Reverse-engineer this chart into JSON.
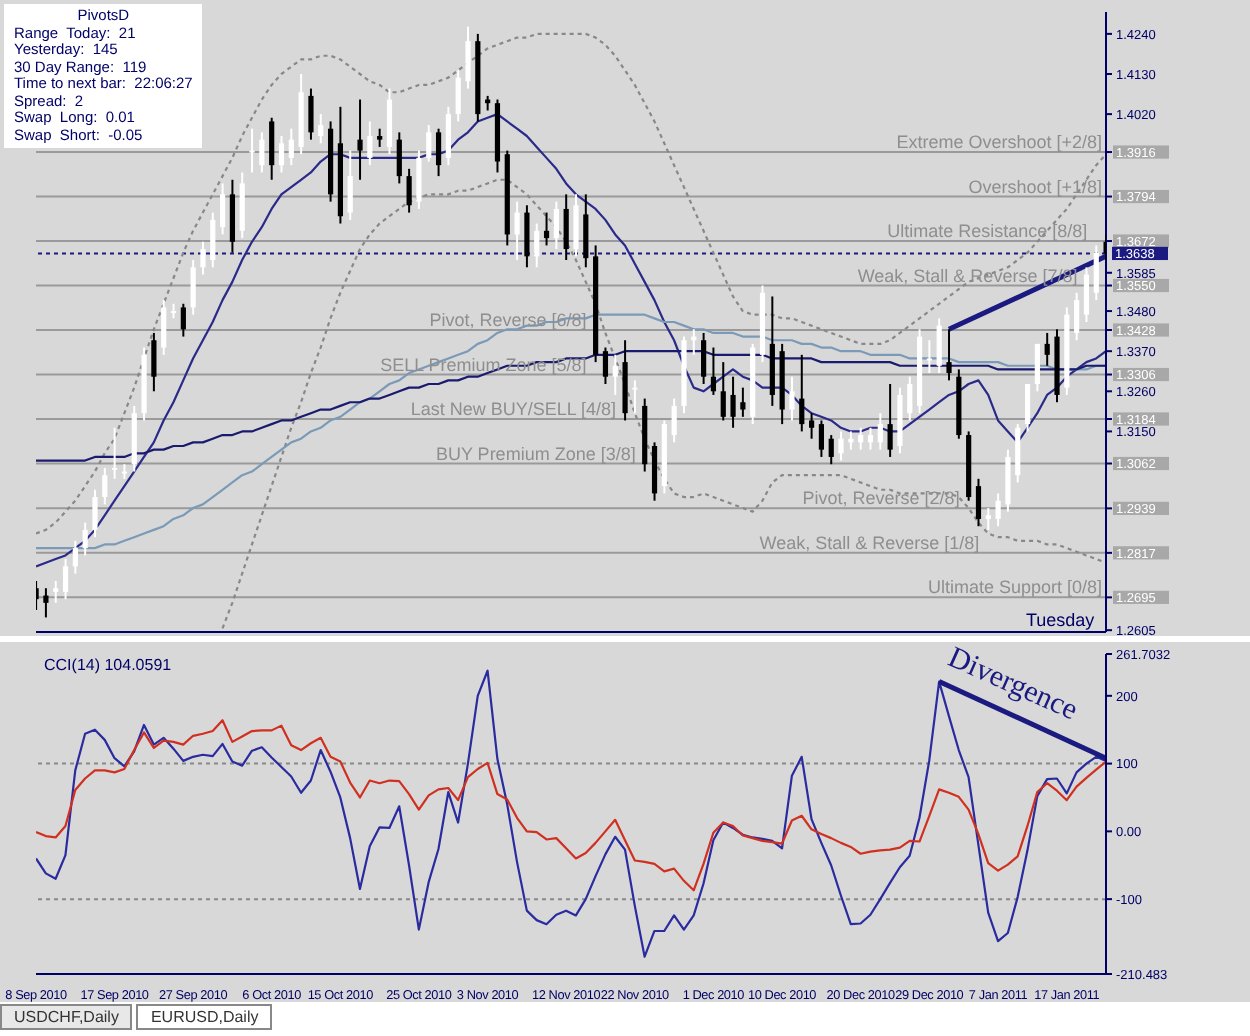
{
  "chart_data": [
    {
      "type": "candlestick",
      "tick_labels": "y",
      "grid": false,
      "categories": [
        null,
        null,
        null,
        null,
        null,
        null,
        null,
        null,
        null,
        null,
        null,
        null,
        null,
        null,
        null,
        null,
        null,
        null,
        null,
        null,
        null,
        null,
        null,
        null,
        null,
        null,
        null,
        null,
        null,
        null,
        null,
        null,
        null,
        null,
        null,
        null,
        null,
        null,
        null,
        null,
        null,
        null,
        null,
        null,
        null,
        null,
        null,
        null,
        null,
        null,
        null,
        null,
        null,
        null,
        null,
        null,
        null,
        null,
        null,
        null,
        null,
        null,
        null,
        null,
        null,
        null,
        null,
        null,
        null,
        null,
        null,
        null,
        null,
        null,
        null,
        null,
        null,
        null,
        null,
        null,
        null,
        null,
        null,
        null,
        null,
        null,
        null,
        null,
        null,
        null,
        null,
        null,
        null,
        null,
        null,
        null,
        null,
        null,
        null,
        null,
        null,
        null,
        null,
        null,
        null,
        null,
        null,
        null,
        null,
        null
      ],
      "ohlc": [
        [
          1.272,
          1.274,
          1.266,
          1.269
        ],
        [
          1.27,
          1.272,
          1.264,
          1.268
        ],
        [
          1.271,
          1.274,
          1.268,
          1.272
        ],
        [
          1.271,
          1.28,
          1.269,
          1.278
        ],
        [
          1.278,
          1.285,
          1.276,
          1.283
        ],
        [
          1.283,
          1.29,
          1.281,
          1.288
        ],
        [
          1.288,
          1.299,
          1.286,
          1.297
        ],
        [
          1.297,
          1.305,
          1.295,
          1.303
        ],
        [
          1.305,
          1.316,
          1.302,
          1.305
        ],
        [
          1.304,
          1.306,
          1.302,
          1.304
        ],
        [
          1.306,
          1.322,
          1.304,
          1.32
        ],
        [
          1.32,
          1.338,
          1.318,
          1.336
        ],
        [
          1.34,
          1.342,
          1.326,
          1.33
        ],
        [
          1.338,
          1.351,
          1.336,
          1.349
        ],
        [
          1.348,
          1.35,
          1.346,
          1.348
        ],
        [
          1.349,
          1.35,
          1.341,
          1.343
        ],
        [
          1.349,
          1.362,
          1.347,
          1.36
        ],
        [
          1.36,
          1.367,
          1.358,
          1.365
        ],
        [
          1.362,
          1.375,
          1.36,
          1.373
        ],
        [
          1.371,
          1.383,
          1.369,
          1.38
        ],
        [
          1.38,
          1.384,
          1.364,
          1.367
        ],
        [
          1.37,
          1.386,
          1.368,
          1.383
        ],
        [
          1.392,
          1.398,
          1.386,
          1.392
        ],
        [
          1.388,
          1.397,
          1.386,
          1.395
        ],
        [
          1.4,
          1.401,
          1.384,
          1.388
        ],
        [
          1.388,
          1.396,
          1.386,
          1.394
        ],
        [
          1.39,
          1.398,
          1.388,
          1.395
        ],
        [
          1.393,
          1.413,
          1.391,
          1.408
        ],
        [
          1.407,
          1.409,
          1.395,
          1.397
        ],
        [
          1.396,
          1.402,
          1.394,
          1.399
        ],
        [
          1.398,
          1.4,
          1.378,
          1.38
        ],
        [
          1.394,
          1.404,
          1.372,
          1.374
        ],
        [
          1.375,
          1.392,
          1.373,
          1.385
        ],
        [
          1.395,
          1.406,
          1.384,
          1.392
        ],
        [
          1.39,
          1.4,
          1.388,
          1.396
        ],
        [
          1.396,
          1.398,
          1.393,
          1.395
        ],
        [
          1.393,
          1.409,
          1.391,
          1.406
        ],
        [
          1.395,
          1.397,
          1.383,
          1.385
        ],
        [
          1.385,
          1.387,
          1.375,
          1.377
        ],
        [
          1.378,
          1.392,
          1.376,
          1.39
        ],
        [
          1.39,
          1.399,
          1.389,
          1.397
        ],
        [
          1.397,
          1.398,
          1.385,
          1.388
        ],
        [
          1.39,
          1.404,
          1.388,
          1.402
        ],
        [
          1.402,
          1.414,
          1.4,
          1.412
        ],
        [
          1.411,
          1.426,
          1.409,
          1.422
        ],
        [
          1.422,
          1.424,
          1.4,
          1.402
        ],
        [
          1.406,
          1.407,
          1.403,
          1.405
        ],
        [
          1.405,
          1.406,
          1.386,
          1.389
        ],
        [
          1.391,
          1.392,
          1.366,
          1.369
        ],
        [
          1.369,
          1.378,
          1.362,
          1.375
        ],
        [
          1.375,
          1.377,
          1.36,
          1.363
        ],
        [
          1.363,
          1.372,
          1.36,
          1.37
        ],
        [
          1.37,
          1.375,
          1.366,
          1.368
        ],
        [
          1.368,
          1.378,
          1.365,
          1.376
        ],
        [
          1.376,
          1.38,
          1.362,
          1.365
        ],
        [
          1.365,
          1.38,
          1.363,
          1.377
        ],
        [
          1.3745,
          1.38,
          1.36,
          1.3625
        ],
        [
          1.363,
          1.366,
          1.334,
          1.336
        ],
        [
          1.337,
          1.338,
          1.328,
          1.33
        ],
        [
          1.33,
          1.336,
          1.325,
          1.333
        ],
        [
          1.334,
          1.34,
          1.318,
          1.32
        ],
        [
          1.327,
          1.329,
          1.32,
          1.327
        ],
        [
          1.322,
          1.324,
          1.304,
          1.306
        ],
        [
          1.311,
          1.312,
          1.296,
          1.298
        ],
        [
          1.3,
          1.318,
          1.298,
          1.317
        ],
        [
          1.314,
          1.324,
          1.312,
          1.322
        ],
        [
          1.322,
          1.341,
          1.32,
          1.34
        ],
        [
          1.34,
          1.343,
          1.336,
          1.341
        ],
        [
          1.34,
          1.342,
          1.328,
          1.33
        ],
        [
          1.33,
          1.338,
          1.325,
          1.326
        ],
        [
          1.326,
          1.334,
          1.318,
          1.319
        ],
        [
          1.325,
          1.33,
          1.316,
          1.319
        ],
        [
          1.323,
          1.327,
          1.319,
          1.321
        ],
        [
          1.319,
          1.339,
          1.317,
          1.338
        ],
        [
          1.336,
          1.355,
          1.334,
          1.353
        ],
        [
          1.339,
          1.352,
          1.322,
          1.325
        ],
        [
          1.337,
          1.339,
          1.317,
          1.321
        ],
        [
          1.321,
          1.33,
          1.318,
          1.326
        ],
        [
          1.324,
          1.336,
          1.315,
          1.317
        ],
        [
          1.318,
          1.32,
          1.313,
          1.316
        ],
        [
          1.317,
          1.318,
          1.308,
          1.31
        ],
        [
          1.313,
          1.314,
          1.306,
          1.308
        ],
        [
          1.309,
          1.315,
          1.307,
          1.313
        ],
        [
          1.312,
          1.315,
          1.31,
          1.313
        ],
        [
          1.312,
          1.316,
          1.31,
          1.314
        ],
        [
          1.312,
          1.316,
          1.31,
          1.314
        ],
        [
          1.312,
          1.32,
          1.31,
          1.317
        ],
        [
          1.317,
          1.328,
          1.308,
          1.31
        ],
        [
          1.311,
          1.327,
          1.309,
          1.325
        ],
        [
          1.32,
          1.33,
          1.318,
          1.328
        ],
        [
          1.322,
          1.343,
          1.32,
          1.341
        ],
        [
          1.335,
          1.34,
          1.331,
          1.335
        ],
        [
          1.333,
          1.346,
          1.331,
          1.344
        ],
        [
          1.334,
          1.343,
          1.329,
          1.331
        ],
        [
          1.33,
          1.332,
          1.313,
          1.314
        ],
        [
          1.314,
          1.315,
          1.296,
          1.297
        ],
        [
          1.3,
          1.302,
          1.289,
          1.291
        ],
        [
          1.291,
          1.294,
          1.288,
          1.292
        ],
        [
          1.291,
          1.298,
          1.289,
          1.296
        ],
        [
          1.295,
          1.31,
          1.293,
          1.308
        ],
        [
          1.303,
          1.317,
          1.301,
          1.316
        ],
        [
          1.317,
          1.328,
          1.315,
          1.328
        ],
        [
          1.328,
          1.339,
          1.326,
          1.339
        ],
        [
          1.339,
          1.342,
          1.333,
          1.336
        ],
        [
          1.341,
          1.343,
          1.323,
          1.325
        ],
        [
          1.327,
          1.349,
          1.325,
          1.347
        ],
        [
          1.342,
          1.353,
          1.34,
          1.351
        ],
        [
          1.347,
          1.36,
          1.345,
          1.358
        ],
        [
          1.353,
          1.366,
          1.351,
          1.364
        ],
        [
          1.367,
          1.369,
          1.362,
          1.3638
        ]
      ],
      "series": [
        {
          "type": "line",
          "color": "#888888",
          "line_style": "dotted",
          "values": [
            1.287,
            1.288,
            1.29,
            1.293,
            1.296,
            1.3,
            1.304,
            1.309,
            1.313,
            1.32,
            1.327,
            1.335,
            1.343,
            1.35,
            1.357,
            1.364,
            1.37,
            1.375,
            1.38,
            1.385,
            1.39,
            1.396,
            1.401,
            1.406,
            1.41,
            1.413,
            1.415,
            1.417,
            1.417,
            1.418,
            1.418,
            1.417,
            1.415,
            1.413,
            1.411,
            1.41,
            1.408,
            1.408,
            1.409,
            1.41,
            1.41,
            1.411,
            1.412,
            1.414,
            1.416,
            1.418,
            1.42,
            1.421,
            1.422,
            1.423,
            1.423,
            1.424,
            1.424,
            1.424,
            1.424,
            1.424,
            1.424,
            1.423,
            1.421,
            1.418,
            1.414,
            1.41,
            1.405,
            1.4,
            1.394,
            1.388,
            1.382,
            1.376,
            1.37,
            1.364,
            1.358,
            1.352,
            1.348,
            1.347,
            1.347,
            1.347,
            1.346,
            1.346,
            1.345,
            1.344,
            1.343,
            1.342,
            1.341,
            1.34,
            1.339,
            1.339,
            1.339,
            1.34,
            1.342,
            1.344,
            1.346,
            1.348,
            1.35,
            1.352,
            1.354,
            1.356,
            1.357,
            1.358,
            1.359,
            1.36,
            1.362,
            1.364,
            1.367,
            1.37,
            1.373,
            1.376,
            1.38,
            1.384,
            1.388,
            1.391
          ]
        },
        {
          "type": "line",
          "color": "#888888",
          "line_style": "dotted",
          "values": [
            null,
            null,
            null,
            null,
            null,
            null,
            null,
            null,
            null,
            null,
            null,
            null,
            null,
            null,
            null,
            null,
            null,
            null,
            null,
            1.261,
            1.268,
            1.276,
            1.284,
            1.292,
            1.3,
            1.308,
            1.316,
            1.323,
            1.331,
            1.338,
            1.346,
            1.353,
            1.359,
            1.365,
            1.369,
            1.372,
            1.374,
            1.376,
            1.378,
            1.379,
            1.38,
            1.38,
            1.38,
            1.381,
            1.381,
            1.382,
            1.383,
            1.384,
            1.384,
            1.382,
            1.38,
            1.377,
            1.374,
            1.371,
            1.367,
            1.362,
            1.356,
            1.35,
            1.342,
            1.335,
            1.328,
            1.32,
            1.313,
            1.307,
            1.302,
            1.298,
            1.297,
            1.297,
            1.298,
            1.297,
            1.296,
            1.295,
            1.294,
            1.293,
            1.296,
            1.301,
            1.303,
            1.303,
            1.303,
            1.303,
            1.303,
            1.303,
            1.303,
            1.302,
            1.301,
            1.3,
            1.299,
            1.299,
            1.298,
            1.298,
            1.298,
            1.298,
            1.298,
            1.298,
            1.297,
            1.294,
            1.29,
            1.287,
            1.286,
            1.286,
            1.285,
            1.285,
            1.285,
            1.284,
            1.284,
            1.283,
            1.282,
            1.281,
            1.28,
            1.279
          ]
        },
        {
          "type": "line",
          "color": "#2a2a8a",
          "line_style": "solid",
          "values": [
            1.278,
            1.279,
            1.28,
            1.281,
            1.283,
            1.285,
            1.288,
            1.292,
            1.296,
            1.3,
            1.304,
            1.308,
            1.312,
            1.318,
            1.323,
            1.329,
            1.335,
            1.34,
            1.345,
            1.351,
            1.356,
            1.362,
            1.367,
            1.371,
            1.376,
            1.38,
            1.382,
            1.384,
            1.386,
            1.389,
            1.391,
            1.391,
            1.39,
            1.39,
            1.39,
            1.39,
            1.39,
            1.39,
            1.39,
            1.39,
            1.391,
            1.391,
            1.392,
            1.395,
            1.397,
            1.4,
            1.401,
            1.402,
            1.4,
            1.398,
            1.396,
            1.393,
            1.39,
            1.387,
            1.383,
            1.38,
            1.378,
            1.376,
            1.373,
            1.369,
            1.366,
            1.361,
            1.356,
            1.351,
            1.345,
            1.34,
            1.333,
            1.327,
            1.326,
            1.328,
            1.33,
            1.332,
            1.33,
            1.329,
            1.327,
            1.327,
            1.327,
            1.325,
            1.322,
            1.32,
            1.319,
            1.318,
            1.316,
            1.315,
            1.315,
            1.316,
            1.316,
            1.315,
            1.315,
            1.317,
            1.319,
            1.321,
            1.323,
            1.325,
            1.326,
            1.328,
            1.329,
            1.325,
            1.318,
            1.315,
            1.312,
            1.316,
            1.32,
            1.325,
            1.327,
            1.33,
            1.332,
            1.334,
            1.335,
            1.337
          ]
        },
        {
          "type": "line",
          "color": "#7a9ab8",
          "line_style": "solid",
          "values": [
            1.283,
            1.283,
            1.283,
            1.283,
            1.283,
            1.283,
            1.283,
            1.284,
            1.284,
            1.285,
            1.286,
            1.287,
            1.288,
            1.289,
            1.291,
            1.292,
            1.294,
            1.295,
            1.297,
            1.299,
            1.301,
            1.303,
            1.304,
            1.306,
            1.308,
            1.31,
            1.312,
            1.313,
            1.315,
            1.316,
            1.318,
            1.319,
            1.321,
            1.323,
            1.324,
            1.326,
            1.328,
            1.329,
            1.331,
            1.332,
            1.333,
            1.334,
            1.335,
            1.336,
            1.337,
            1.339,
            1.34,
            1.342,
            1.343,
            1.343,
            1.344,
            1.344,
            1.345,
            1.345,
            1.346,
            1.346,
            1.346,
            1.347,
            1.347,
            1.347,
            1.347,
            1.347,
            1.347,
            1.346,
            1.345,
            1.345,
            1.344,
            1.343,
            1.343,
            1.342,
            1.342,
            1.342,
            1.341,
            1.341,
            1.341,
            1.34,
            1.34,
            1.34,
            1.339,
            1.339,
            1.338,
            1.338,
            1.337,
            1.337,
            1.337,
            1.336,
            1.336,
            1.336,
            1.336,
            1.335,
            1.335,
            1.335,
            1.335,
            1.335,
            1.334,
            1.334,
            1.334,
            1.334,
            1.334,
            1.333,
            1.333,
            1.333,
            1.333,
            1.333,
            1.332,
            1.332,
            1.332,
            1.332,
            1.333,
            1.333
          ]
        },
        {
          "type": "line",
          "color": "#1a1a6e",
          "line_style": "solid",
          "values": [
            1.307,
            1.307,
            1.307,
            1.307,
            1.307,
            1.307,
            1.308,
            1.308,
            1.308,
            1.308,
            1.309,
            1.309,
            1.31,
            1.31,
            1.311,
            1.311,
            1.312,
            1.312,
            1.313,
            1.314,
            1.314,
            1.315,
            1.315,
            1.316,
            1.317,
            1.318,
            1.318,
            1.319,
            1.32,
            1.321,
            1.321,
            1.322,
            1.323,
            1.323,
            1.324,
            1.324,
            1.325,
            1.326,
            1.327,
            1.327,
            1.328,
            1.328,
            1.329,
            1.329,
            1.33,
            1.33,
            1.331,
            1.332,
            1.333,
            1.333,
            1.333,
            1.334,
            1.334,
            1.334,
            1.335,
            1.335,
            1.335,
            1.336,
            1.336,
            1.336,
            1.337,
            1.337,
            1.337,
            1.337,
            1.337,
            1.337,
            1.337,
            1.337,
            1.337,
            1.336,
            1.336,
            1.336,
            1.336,
            1.336,
            1.336,
            1.335,
            1.335,
            1.335,
            1.335,
            1.335,
            1.334,
            1.334,
            1.334,
            1.334,
            1.334,
            1.334,
            1.334,
            1.334,
            1.333,
            1.333,
            1.333,
            1.333,
            1.333,
            1.333,
            1.333,
            1.333,
            1.333,
            1.333,
            1.332,
            1.332,
            1.332,
            1.332,
            1.332,
            1.332,
            1.332,
            1.332,
            1.332,
            1.333,
            1.333,
            1.333
          ]
        },
        {
          "type": "line",
          "color": "#1a1a80",
          "line_style": "solid",
          "values": [
            null,
            null,
            null,
            null,
            null,
            null,
            null,
            null,
            null,
            null,
            null,
            null,
            null,
            null,
            null,
            null,
            null,
            null,
            null,
            null,
            null,
            null,
            null,
            null,
            null,
            null,
            null,
            null,
            null,
            null,
            null,
            null,
            null,
            null,
            null,
            null,
            null,
            null,
            null,
            null,
            null,
            null,
            null,
            null,
            null,
            null,
            null,
            null,
            null,
            null,
            null,
            null,
            null,
            null,
            null,
            null,
            null,
            null,
            null,
            null,
            null,
            null,
            null,
            null,
            null,
            null,
            null,
            null,
            null,
            null,
            null,
            null,
            null,
            null,
            null,
            null,
            null,
            null,
            null,
            null,
            null,
            null,
            null,
            null,
            null,
            null,
            null,
            null,
            null,
            null,
            null,
            null,
            null,
            1.343,
            null,
            null,
            null,
            null,
            null,
            null,
            null,
            null,
            null,
            null,
            null,
            null,
            null,
            null,
            null,
            1.363
          ]
        }
      ],
      "ylim": [
        1.26,
        1.43
      ],
      "yticks": [
        {
          "value": 1.424,
          "label": "1.4240"
        },
        {
          "value": 1.413,
          "label": "1.4130"
        },
        {
          "value": 1.402,
          "label": "1.4020"
        },
        {
          "value": 1.3585,
          "label": "1.3585"
        },
        {
          "value": 1.348,
          "label": "1.3480"
        },
        {
          "value": 1.337,
          "label": "1.3370"
        },
        {
          "value": 1.326,
          "label": "1.3260"
        },
        {
          "value": 1.315,
          "label": "1.3150"
        },
        {
          "value": 1.2605,
          "label": "1.2605"
        },
        {
          "value": 1.3916,
          "label": "1.3916"
        },
        {
          "value": 1.3794,
          "label": "1.3794"
        },
        {
          "value": 1.3672,
          "label": "1.3672"
        },
        {
          "value": 1.355,
          "label": "1.3550"
        },
        {
          "value": 1.3428,
          "label": "1.3428"
        },
        {
          "value": 1.3306,
          "label": "1.3306"
        },
        {
          "value": 1.3184,
          "label": "1.3184"
        },
        {
          "value": 1.3062,
          "label": "1.3062"
        },
        {
          "value": 1.2939,
          "label": "1.2939"
        },
        {
          "value": 1.2817,
          "label": "1.2817"
        },
        {
          "value": 1.2695,
          "label": "1.2695"
        }
      ],
      "ref_lines": [
        {
          "axis": "y",
          "value": 1.3916,
          "label": "Extreme Overshoot [+2/8]",
          "color": "#9a9a9a"
        },
        {
          "axis": "y",
          "value": 1.3794,
          "label": "Overshoot [+1/8]",
          "color": "#9a9a9a"
        },
        {
          "axis": "y",
          "value": 1.3672,
          "label": "Ultimate Resistance [8/8]",
          "color": "#9a9a9a"
        },
        {
          "axis": "y",
          "value": 1.355,
          "label": "Weak, Stall & Reverse [7/8]",
          "color": "#9a9a9a"
        },
        {
          "axis": "y",
          "value": 1.3428,
          "label": "Pivot, Reverse [6/8]",
          "color": "#9a9a9a"
        },
        {
          "axis": "y",
          "value": 1.3306,
          "label": "SELL Premium Zone [5/8]",
          "color": "#9a9a9a"
        },
        {
          "axis": "y",
          "value": 1.3184,
          "label": "Last New BUY/SELL [4/8]",
          "color": "#9a9a9a"
        },
        {
          "axis": "y",
          "value": 1.3062,
          "label": "BUY Premium Zone [3/8]",
          "color": "#9a9a9a"
        },
        {
          "axis": "y",
          "value": 1.2939,
          "label": "Pivot, Reverse [2/8]",
          "color": "#9a9a9a"
        },
        {
          "axis": "y",
          "value": 1.2817,
          "label": "Weak, Stall & Reverse [1/8]",
          "color": "#9a9a9a"
        },
        {
          "axis": "y",
          "value": 1.2695,
          "label": "Ultimate Support [0/8]",
          "color": "#9a9a9a"
        },
        {
          "axis": "y",
          "value": 1.3638,
          "label": "1.3638",
          "color": "#1a1a80",
          "line_style": "dotted"
        }
      ],
      "annotations": [
        "PivotsD",
        "Range  Today:  21",
        "Yesterday:  145",
        "30 Day Range:  119",
        "Time to next bar:  22:06:27",
        "Spread:  2",
        "Swap  Long:  0.01",
        "Swap  Short:  -0.05",
        "Tuesday"
      ]
    },
    {
      "type": "line",
      "title": "CCI(14) 104.0591",
      "grid": false,
      "categories": [
        "8 Sep 2010",
        null,
        null,
        null,
        null,
        null,
        null,
        null,
        "17 Sep 2010",
        null,
        null,
        null,
        null,
        null,
        null,
        null,
        "27 Sep 2010",
        null,
        null,
        null,
        null,
        null,
        null,
        null,
        "6 Oct 2010",
        null,
        null,
        null,
        null,
        null,
        null,
        "15 Oct 2010",
        null,
        null,
        null,
        null,
        null,
        null,
        null,
        "25 Oct 2010",
        null,
        null,
        null,
        null,
        null,
        null,
        "3 Nov 2010",
        null,
        null,
        null,
        null,
        null,
        null,
        null,
        "12 Nov 2010",
        null,
        null,
        null,
        null,
        null,
        null,
        "22 Nov 2010",
        null,
        null,
        null,
        null,
        null,
        null,
        null,
        "1 Dec 2010",
        null,
        null,
        null,
        null,
        null,
        null,
        "10 Dec 2010",
        null,
        null,
        null,
        null,
        null,
        null,
        null,
        "20 Dec 2010",
        null,
        null,
        null,
        null,
        null,
        null,
        "29 Dec 2010",
        null,
        null,
        null,
        null,
        null,
        null,
        "7 Jan 2011",
        null,
        null,
        null,
        null,
        null,
        null,
        "17 Jan 2011",
        null,
        null,
        null,
        null
      ],
      "series": [
        {
          "color": "#2b2ba0",
          "values": [
            -40,
            -62,
            -70,
            -35,
            90,
            144,
            150,
            135,
            108,
            96,
            118,
            157,
            128,
            138,
            122,
            104,
            110,
            113,
            111,
            129,
            103,
            97,
            119,
            124,
            109,
            95,
            81,
            57,
            75,
            120,
            88,
            50,
            -10,
            -85,
            -22,
            6,
            5,
            37,
            -50,
            -145,
            -75,
            -26,
            58,
            13,
            100,
            200,
            237,
            107,
            40,
            -45,
            -117,
            -131,
            -137,
            -123,
            -117,
            -124,
            -100,
            -66,
            -34,
            -8,
            -27,
            -110,
            -185,
            -147,
            -147,
            -124,
            -145,
            -124,
            -77,
            -13,
            13,
            5,
            -5,
            -9,
            -11,
            -14,
            -25,
            82,
            110,
            18,
            -17,
            -50,
            -95,
            -137,
            -136,
            -123,
            -100,
            -76,
            -53,
            -36,
            20,
            105,
            221,
            170,
            120,
            80,
            -20,
            -120,
            -162,
            -150,
            -97,
            -28,
            52,
            77,
            78,
            56,
            87,
            100,
            110,
            104
          ]
        },
        {
          "color": "#d03020",
          "values": [
            -1,
            -7,
            -9,
            8,
            61,
            78,
            90,
            90,
            87,
            92,
            120,
            146,
            123,
            134,
            132,
            128,
            141,
            144,
            148,
            164,
            132,
            140,
            148,
            149,
            149,
            156,
            127,
            120,
            130,
            138,
            110,
            103,
            72,
            50,
            75,
            71,
            75,
            74,
            55,
            32,
            53,
            62,
            64,
            46,
            80,
            92,
            101,
            55,
            47,
            20,
            0,
            -1,
            -12,
            -10,
            -25,
            -40,
            -32,
            -17,
            0,
            17,
            -13,
            -43,
            -45,
            -48,
            -59,
            -55,
            -73,
            -87,
            -48,
            -2,
            13,
            8,
            -6,
            -10,
            -14,
            -16,
            -18,
            16,
            23,
            3,
            -4,
            -10,
            -17,
            -23,
            -33,
            -30,
            -28,
            -27,
            -24,
            -14,
            -15,
            23,
            62,
            57,
            51,
            32,
            -4,
            -47,
            -58,
            -49,
            -37,
            8,
            58,
            71,
            60,
            46,
            66,
            79,
            91,
            103
          ]
        },
        {
          "color": "#1a1a80",
          "values": [
            null,
            null,
            null,
            null,
            null,
            null,
            null,
            null,
            null,
            null,
            null,
            null,
            null,
            null,
            null,
            null,
            null,
            null,
            null,
            null,
            null,
            null,
            null,
            null,
            null,
            null,
            null,
            null,
            null,
            null,
            null,
            null,
            null,
            null,
            null,
            null,
            null,
            null,
            null,
            null,
            null,
            null,
            null,
            null,
            null,
            null,
            null,
            null,
            null,
            null,
            null,
            null,
            null,
            null,
            null,
            null,
            null,
            null,
            null,
            null,
            null,
            null,
            null,
            null,
            null,
            null,
            null,
            null,
            null,
            null,
            null,
            null,
            null,
            null,
            null,
            null,
            null,
            null,
            null,
            null,
            null,
            null,
            null,
            null,
            null,
            null,
            null,
            null,
            null,
            null,
            null,
            null,
            221,
            null,
            null,
            null,
            null,
            null,
            null,
            null,
            null,
            null,
            null,
            null,
            null,
            null,
            null,
            null,
            null,
            108
          ]
        }
      ],
      "ylim": [
        -210.483,
        261.7032
      ],
      "yticks": [
        {
          "value": 261.7032,
          "label": "261.7032"
        },
        200,
        100,
        {
          "value": 0,
          "label": "0.00"
        },
        -100,
        {
          "value": -210.483,
          "label": "-210.483"
        }
      ],
      "ref_lines": [
        {
          "axis": "y",
          "value": 100,
          "color": "#888888",
          "line_style": "dotted"
        },
        {
          "axis": "y",
          "value": -100,
          "color": "#888888",
          "line_style": "dotted"
        }
      ],
      "annotations": [
        "Divergence",
        "USDCHF,Daily",
        "EURUSD,Daily"
      ]
    }
  ]
}
